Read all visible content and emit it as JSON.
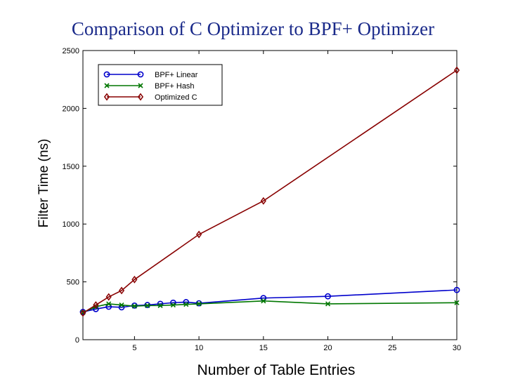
{
  "chart_data": {
    "type": "line",
    "title": "Comparison of C Optimizer to BPF+ Optimizer",
    "xlabel": "Number of Table Entries",
    "ylabel": "Filter Time (ns)",
    "xlim": [
      1,
      30
    ],
    "ylim": [
      0,
      2500
    ],
    "xticks": [
      5,
      10,
      15,
      20,
      25,
      30
    ],
    "yticks": [
      0,
      500,
      1000,
      1500,
      2000,
      2500
    ],
    "grid": false,
    "legend_position": "top-left",
    "series": [
      {
        "name": "BPF+ Linear",
        "color": "#0000cc",
        "marker": "circle",
        "x": [
          1,
          2,
          3,
          4,
          5,
          6,
          7,
          8,
          9,
          10,
          15,
          20,
          30
        ],
        "y": [
          240,
          265,
          285,
          280,
          295,
          300,
          310,
          320,
          325,
          315,
          360,
          375,
          430
        ]
      },
      {
        "name": "BPF+ Hash",
        "color": "#007700",
        "marker": "x",
        "x": [
          1,
          2,
          3,
          4,
          5,
          6,
          7,
          8,
          9,
          10,
          15,
          20,
          30
        ],
        "y": [
          235,
          285,
          310,
          300,
          290,
          295,
          295,
          300,
          305,
          310,
          335,
          310,
          320
        ]
      },
      {
        "name": "Optimized C",
        "color": "#880000",
        "marker": "diamond",
        "x": [
          1,
          2,
          3,
          4,
          5,
          10,
          15,
          30
        ],
        "y": [
          230,
          300,
          370,
          425,
          520,
          910,
          1200,
          2330
        ]
      }
    ]
  }
}
